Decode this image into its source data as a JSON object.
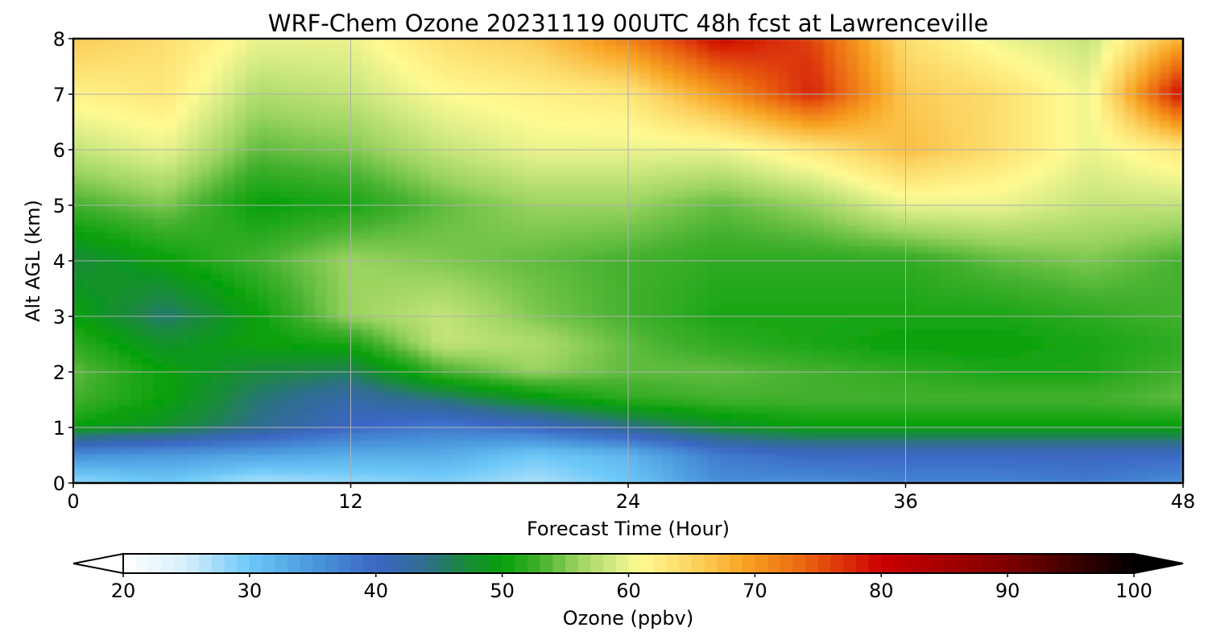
{
  "chart_data": {
    "type": "heatmap",
    "title": "WRF-Chem Ozone  20231119 00UTC 48h fcst at Lawrenceville",
    "xlabel": "Forecast Time (Hour)",
    "ylabel": "Alt AGL (km)",
    "xlim": [
      0,
      48
    ],
    "ylim": [
      0,
      8
    ],
    "xticks": [
      "0",
      "12",
      "24",
      "36",
      "48"
    ],
    "yticks": [
      "0",
      "1",
      "2",
      "3",
      "4",
      "5",
      "6",
      "7",
      "8"
    ],
    "grid": true,
    "x": [
      0,
      4,
      8,
      12,
      16,
      20,
      24,
      28,
      32,
      36,
      40,
      44,
      48
    ],
    "y": [
      0,
      0.5,
      1,
      1.5,
      2,
      2.5,
      3,
      4,
      5,
      6,
      7,
      8
    ],
    "values": [
      [
        28,
        30,
        27,
        28,
        29,
        27,
        30,
        36,
        36,
        37,
        37,
        38,
        36
      ],
      [
        36,
        35,
        34,
        33,
        33,
        30,
        32,
        38,
        40,
        40,
        40,
        40,
        40
      ],
      [
        50,
        48,
        44,
        40,
        38,
        40,
        44,
        48,
        50,
        50,
        50,
        50,
        50
      ],
      [
        53,
        50,
        45,
        42,
        45,
        49,
        52,
        53,
        53,
        53,
        53,
        53,
        54
      ],
      [
        54,
        50,
        47,
        46,
        53,
        56,
        54,
        54,
        53,
        52,
        51,
        51,
        53
      ],
      [
        52,
        48,
        50,
        51,
        58,
        57,
        54,
        52,
        51,
        50,
        50,
        51,
        52
      ],
      [
        50,
        45,
        50,
        56,
        58,
        55,
        53,
        51,
        51,
        51,
        51,
        52,
        53
      ],
      [
        47,
        50,
        53,
        56,
        55,
        54,
        53,
        52,
        52,
        52,
        54,
        55,
        53
      ],
      [
        53,
        55,
        50,
        51,
        54,
        56,
        56,
        54,
        56,
        60,
        60,
        58,
        58
      ],
      [
        58,
        60,
        54,
        55,
        58,
        60,
        60,
        60,
        63,
        67,
        64,
        60,
        63
      ],
      [
        62,
        63,
        57,
        58,
        61,
        62,
        63,
        70,
        78,
        66,
        64,
        60,
        80
      ],
      [
        66,
        64,
        60,
        60,
        64,
        66,
        72,
        80,
        76,
        64,
        60,
        58,
        68
      ]
    ],
    "colorbar": {
      "label": "Ozone  (ppbv)",
      "min": 20,
      "max": 100,
      "ticks": [
        "20",
        "30",
        "40",
        "50",
        "60",
        "70",
        "80",
        "90",
        "100"
      ],
      "extend": "both"
    },
    "colormap": [
      [
        20,
        "#ffffff"
      ],
      [
        25,
        "#d6eefa"
      ],
      [
        30,
        "#6cc8f8"
      ],
      [
        35,
        "#4a98dc"
      ],
      [
        40,
        "#3b66c4"
      ],
      [
        44,
        "#2f6e8e"
      ],
      [
        47,
        "#1a8a3c"
      ],
      [
        50,
        "#06a00a"
      ],
      [
        53,
        "#43b02e"
      ],
      [
        56,
        "#9cd460"
      ],
      [
        59,
        "#d8ec86"
      ],
      [
        61,
        "#fffa92"
      ],
      [
        65,
        "#fcd462"
      ],
      [
        69,
        "#f8a624"
      ],
      [
        74,
        "#ea6410"
      ],
      [
        80,
        "#cc0000"
      ],
      [
        90,
        "#7e0000"
      ],
      [
        100,
        "#000000"
      ]
    ]
  }
}
